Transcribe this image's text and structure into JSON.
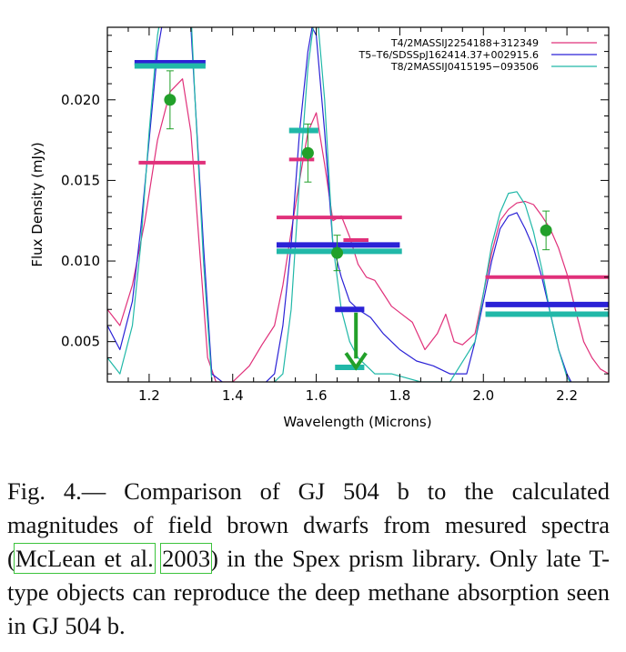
{
  "figure": {
    "chart_data": {
      "type": "line",
      "xlabel": "Wavelength (Microns)",
      "ylabel": "Flux Density (mJy)",
      "xlim": [
        1.1,
        2.3
      ],
      "ylim": [
        0.0025,
        0.0245
      ],
      "xticks": [
        "1.2",
        "1.4",
        "1.6",
        "1.8",
        "2.0",
        "2.2"
      ],
      "yticks": [
        "0.005",
        "0.010",
        "0.015",
        "0.020"
      ],
      "legend_position": "top-right",
      "series": [
        {
          "name": "T4/2MASSIJ2254188+312349",
          "color": "#e0307a",
          "x": [
            1.1,
            1.13,
            1.16,
            1.19,
            1.22,
            1.25,
            1.28,
            1.3,
            1.32,
            1.34,
            1.36,
            1.4,
            1.44,
            1.47,
            1.5,
            1.52,
            1.54,
            1.56,
            1.58,
            1.6,
            1.62,
            1.64,
            1.66,
            1.68,
            1.7,
            1.72,
            1.74,
            1.76,
            1.78,
            1.8,
            1.83,
            1.86,
            1.89,
            1.91,
            1.93,
            1.95,
            1.98,
            2.0,
            2.02,
            2.04,
            2.06,
            2.08,
            2.1,
            2.12,
            2.14,
            2.16,
            2.18,
            2.2,
            2.22,
            2.24,
            2.26,
            2.28,
            2.3
          ],
          "y": [
            0.007,
            0.006,
            0.0085,
            0.0125,
            0.0175,
            0.0205,
            0.0213,
            0.018,
            0.011,
            0.004,
            0.0025,
            0.0025,
            0.0035,
            0.0048,
            0.006,
            0.0085,
            0.0118,
            0.015,
            0.018,
            0.0192,
            0.016,
            0.0125,
            0.0128,
            0.0115,
            0.0098,
            0.009,
            0.0088,
            0.008,
            0.0072,
            0.0068,
            0.0062,
            0.0045,
            0.0055,
            0.0067,
            0.005,
            0.0048,
            0.0055,
            0.008,
            0.0105,
            0.0125,
            0.0132,
            0.0136,
            0.0137,
            0.0135,
            0.0128,
            0.012,
            0.0108,
            0.0092,
            0.007,
            0.005,
            0.004,
            0.0033,
            0.003
          ]
        },
        {
          "name": "T5–T6/SDSSpJ162414.37+002915.6",
          "color": "#2b22d6",
          "x": [
            1.1,
            1.13,
            1.16,
            1.18,
            1.2,
            1.22,
            1.24,
            1.26,
            1.28,
            1.3,
            1.31,
            1.33,
            1.35,
            1.4,
            1.46,
            1.5,
            1.52,
            1.54,
            1.56,
            1.58,
            1.59,
            1.6,
            1.62,
            1.64,
            1.66,
            1.68,
            1.7,
            1.73,
            1.76,
            1.8,
            1.84,
            1.88,
            1.92,
            1.96,
            1.98,
            2.0,
            2.02,
            2.04,
            2.06,
            2.08,
            2.1,
            2.12,
            2.14,
            2.16,
            2.18,
            2.2,
            2.22,
            2.25
          ],
          "y": [
            0.006,
            0.0045,
            0.0075,
            0.012,
            0.0175,
            0.023,
            0.026,
            0.027,
            0.027,
            0.0245,
            0.02,
            0.011,
            0.003,
            0.002,
            0.002,
            0.003,
            0.006,
            0.011,
            0.018,
            0.023,
            0.0245,
            0.024,
            0.018,
            0.011,
            0.009,
            0.0075,
            0.007,
            0.0065,
            0.0055,
            0.0045,
            0.0038,
            0.0035,
            0.003,
            0.003,
            0.005,
            0.0075,
            0.01,
            0.012,
            0.0128,
            0.013,
            0.012,
            0.0108,
            0.009,
            0.0068,
            0.0045,
            0.003,
            0.002,
            0.002
          ]
        },
        {
          "name": "T8/2MASSIJ0415195−093506",
          "color": "#21b8a8",
          "x": [
            1.1,
            1.13,
            1.16,
            1.18,
            1.2,
            1.22,
            1.24,
            1.26,
            1.28,
            1.3,
            1.31,
            1.33,
            1.35,
            1.4,
            1.48,
            1.52,
            1.54,
            1.56,
            1.58,
            1.6,
            1.62,
            1.64,
            1.66,
            1.68,
            1.7,
            1.74,
            1.78,
            1.85,
            1.92,
            1.98,
            2.0,
            2.02,
            2.04,
            2.06,
            2.08,
            2.1,
            2.12,
            2.14,
            2.16,
            2.18,
            2.2,
            2.22,
            2.25
          ],
          "y": [
            0.004,
            0.003,
            0.006,
            0.011,
            0.018,
            0.024,
            0.027,
            0.028,
            0.028,
            0.0255,
            0.02,
            0.01,
            0.0025,
            0.002,
            0.002,
            0.003,
            0.007,
            0.015,
            0.022,
            0.026,
            0.02,
            0.011,
            0.007,
            0.005,
            0.004,
            0.003,
            0.003,
            0.0025,
            0.0025,
            0.005,
            0.008,
            0.011,
            0.013,
            0.0142,
            0.0143,
            0.0135,
            0.0118,
            0.0095,
            0.0068,
            0.0045,
            0.0028,
            0.002,
            0.002
          ]
        }
      ],
      "bands": [
        {
          "series": 0,
          "segments": [
            [
              1.175,
              1.335,
              0.0161
            ],
            [
              1.535,
              1.595,
              0.0163
            ],
            [
              1.505,
              1.805,
              0.0127
            ],
            [
              1.665,
              1.725,
              0.0113
            ],
            [
              2.005,
              2.3,
              0.009
            ]
          ]
        },
        {
          "series": 1,
          "segments": [
            [
              1.165,
              1.335,
              0.0223
            ],
            [
              1.505,
              1.8,
              0.011
            ],
            [
              1.645,
              1.715,
              0.007
            ],
            [
              2.005,
              2.3,
              0.0073
            ]
          ]
        },
        {
          "series": 2,
          "segments": [
            [
              1.165,
              1.335,
              0.0221
            ],
            [
              1.535,
              1.605,
              0.0181
            ],
            [
              1.505,
              1.805,
              0.0106
            ],
            [
              1.645,
              1.715,
              0.0034
            ],
            [
              2.005,
              2.3,
              0.0067
            ]
          ]
        }
      ],
      "observations": {
        "color": "#22a02a",
        "points": [
          {
            "x": 1.25,
            "y": 0.02,
            "err": 0.0018
          },
          {
            "x": 1.58,
            "y": 0.0167,
            "err": 0.0018
          },
          {
            "x": 1.65,
            "y": 0.0105,
            "err": 0.0011
          },
          {
            "x": 2.15,
            "y": 0.0119,
            "err": 0.0012
          }
        ],
        "upper_limit": {
          "x": 1.695,
          "y_from": 0.0068,
          "y_to": 0.0035
        }
      }
    }
  },
  "caption": {
    "prefix": "Fig.   4.— Comparison of GJ 504 b to the calculated magnitudes of field brown dwarfs from mesured spectra (",
    "citation_authors": "McLean et al.",
    "citation_year": "2003",
    "suffix": ") in the Spex prism library. Only late T-type objects can reproduce the deep methane absorption seen in GJ 504 b."
  }
}
